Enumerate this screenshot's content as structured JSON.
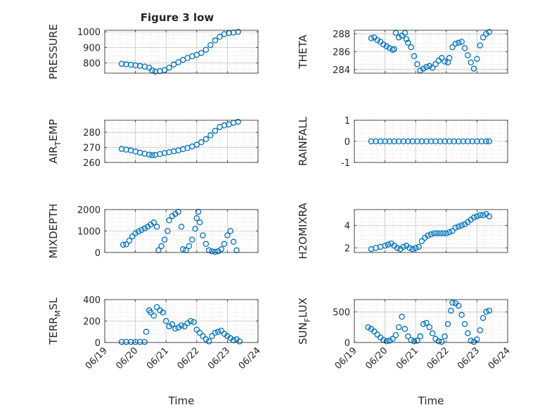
{
  "figure": {
    "title": "Figure 3 low",
    "marker_color": "#0072BD",
    "x_tick_labels": [
      "06/19",
      "06/20",
      "06/21",
      "06/22",
      "06/23",
      "06/24"
    ]
  },
  "chart_data": [
    {
      "type": "scatter",
      "title": "Figure 3 low",
      "ylabel": "PRESSURE",
      "xlabel": "",
      "ylim": [
        735,
        1010
      ],
      "yticks": [
        800,
        900,
        1000
      ],
      "xlim": [
        "06/19",
        "06/24"
      ],
      "grid": true,
      "x": [
        19.55,
        19.7,
        19.85,
        20.0,
        20.15,
        20.3,
        20.45,
        20.55,
        20.65,
        20.8,
        20.95,
        21.1,
        21.25,
        21.4,
        21.55,
        21.7,
        21.85,
        22.0,
        22.15,
        22.3,
        22.45,
        22.6,
        22.75,
        22.9,
        23.05,
        23.2,
        23.35
      ],
      "y": [
        795,
        792,
        789,
        785,
        781,
        777,
        770,
        752,
        745,
        748,
        755,
        770,
        790,
        805,
        820,
        832,
        843,
        852,
        865,
        885,
        915,
        945,
        968,
        985,
        992,
        995,
        1000
      ]
    },
    {
      "type": "scatter",
      "ylabel": "THETA",
      "xlabel": "",
      "ylim": [
        283.6,
        288.4
      ],
      "yticks": [
        284,
        286,
        288
      ],
      "xlim": [
        "06/19",
        "06/24"
      ],
      "grid": true,
      "x": [
        19.55,
        19.65,
        19.75,
        19.85,
        19.95,
        20.05,
        20.15,
        20.25,
        20.3,
        20.35,
        20.45,
        20.55,
        20.65,
        20.7,
        20.75,
        20.85,
        20.95,
        21.05,
        21.15,
        21.25,
        21.35,
        21.45,
        21.55,
        21.65,
        21.75,
        21.85,
        21.95,
        22.05,
        22.1,
        22.2,
        22.3,
        22.4,
        22.5,
        22.6,
        22.7,
        22.8,
        22.9,
        23.0,
        23.1,
        23.2,
        23.3,
        23.4
      ],
      "y": [
        287.5,
        287.6,
        287.3,
        287.1,
        286.8,
        286.6,
        286.4,
        286.2,
        286.3,
        288.1,
        287.6,
        287.8,
        288.1,
        287.4,
        287.0,
        286.5,
        285.5,
        284.6,
        283.9,
        284.1,
        284.3,
        284.4,
        284.2,
        284.6,
        285.0,
        285.3,
        284.9,
        284.8,
        285.3,
        286.5,
        286.9,
        287.0,
        287.1,
        286.4,
        285.6,
        284.8,
        284.1,
        285.2,
        286.7,
        287.6,
        288.0,
        288.2
      ]
    },
    {
      "type": "scatter",
      "ylabel": "AIR_TEMP",
      "xlabel": "",
      "ylim": [
        260,
        288
      ],
      "yticks": [
        260,
        270,
        280
      ],
      "xlim": [
        "06/19",
        "06/24"
      ],
      "grid": true,
      "x": [
        19.55,
        19.7,
        19.85,
        20.0,
        20.15,
        20.3,
        20.45,
        20.55,
        20.65,
        20.8,
        20.95,
        21.1,
        21.25,
        21.4,
        21.55,
        21.7,
        21.85,
        22.0,
        22.15,
        22.3,
        22.45,
        22.6,
        22.75,
        22.9,
        23.05,
        23.2,
        23.35
      ],
      "y": [
        269,
        268.5,
        268,
        267.3,
        266.5,
        265.8,
        265.2,
        264.8,
        265,
        265.6,
        266.2,
        266.8,
        267.4,
        268,
        268.8,
        269.6,
        270.6,
        271.8,
        273.4,
        275.5,
        278,
        281,
        283.5,
        284.6,
        285.2,
        286.3,
        287
      ]
    },
    {
      "type": "scatter",
      "ylabel": "RAINFALL",
      "xlabel": "",
      "ylim": [
        -1,
        1
      ],
      "yticks": [
        -1,
        0,
        1
      ],
      "xlim": [
        "06/19",
        "06/24"
      ],
      "grid": true,
      "x": [
        19.55,
        19.7,
        19.85,
        20.0,
        20.15,
        20.3,
        20.45,
        20.6,
        20.75,
        20.9,
        21.05,
        21.2,
        21.35,
        21.5,
        21.65,
        21.8,
        21.95,
        22.1,
        22.25,
        22.4,
        22.55,
        22.7,
        22.85,
        23.0,
        23.15,
        23.3,
        23.4
      ],
      "y": [
        0,
        0,
        0,
        0,
        0,
        0,
        0,
        0,
        0,
        0,
        0,
        0,
        0,
        0,
        0,
        0,
        0,
        0,
        0,
        0,
        0,
        0,
        0,
        0,
        0,
        0,
        0
      ]
    },
    {
      "type": "scatter",
      "ylabel": "MIXDEPTH",
      "xlabel": "",
      "ylim": [
        0,
        2000
      ],
      "yticks": [
        0,
        1000,
        2000
      ],
      "xlim": [
        "06/19",
        "06/24"
      ],
      "grid": true,
      "x": [
        19.6,
        19.7,
        19.8,
        19.9,
        20.0,
        20.1,
        20.2,
        20.3,
        20.4,
        20.5,
        20.6,
        20.7,
        20.75,
        20.85,
        20.95,
        21.05,
        21.1,
        21.2,
        21.3,
        21.4,
        21.5,
        21.55,
        21.65,
        21.75,
        21.85,
        21.95,
        22.0,
        22.05,
        22.1,
        22.2,
        22.3,
        22.4,
        22.5,
        22.6,
        22.7,
        22.8,
        22.9,
        23.0,
        23.1,
        23.2,
        23.3
      ],
      "y": [
        360,
        380,
        550,
        750,
        900,
        980,
        1050,
        1120,
        1200,
        1300,
        1400,
        1200,
        100,
        300,
        600,
        1000,
        1500,
        1700,
        1800,
        1900,
        1200,
        150,
        100,
        300,
        600,
        1100,
        1600,
        1900,
        1400,
        800,
        400,
        100,
        50,
        30,
        60,
        150,
        400,
        800,
        1000,
        500,
        100
      ]
    },
    {
      "type": "scatter",
      "ylabel": "H2OMIXRA",
      "xlabel": "",
      "ylim": [
        1.6,
        5.4
      ],
      "yticks": [
        2,
        4
      ],
      "xlim": [
        "06/19",
        "06/24"
      ],
      "grid": true,
      "x": [
        19.55,
        19.7,
        19.85,
        20.0,
        20.1,
        20.2,
        20.3,
        20.4,
        20.5,
        20.6,
        20.7,
        20.8,
        20.9,
        21.0,
        21.1,
        21.2,
        21.3,
        21.4,
        21.5,
        21.6,
        21.7,
        21.8,
        21.9,
        22.0,
        22.1,
        22.2,
        22.3,
        22.4,
        22.5,
        22.6,
        22.7,
        22.8,
        22.9,
        23.0,
        23.1,
        23.2,
        23.3,
        23.4
      ],
      "y": [
        1.9,
        2.0,
        2.1,
        2.2,
        2.3,
        2.4,
        2.2,
        2.0,
        1.9,
        2.1,
        2.2,
        2.0,
        1.9,
        2.0,
        2.1,
        2.6,
        2.9,
        3.1,
        3.2,
        3.3,
        3.3,
        3.3,
        3.3,
        3.3,
        3.4,
        3.5,
        3.8,
        3.9,
        4.0,
        4.1,
        4.3,
        4.5,
        4.7,
        4.8,
        4.9,
        4.9,
        5.0,
        4.8
      ]
    },
    {
      "type": "scatter",
      "ylabel": "TERR_MSL",
      "xlabel": "Time",
      "ylim": [
        0,
        400
      ],
      "yticks": [
        0,
        200,
        400
      ],
      "xlim": [
        "06/19",
        "06/24"
      ],
      "grid": true,
      "x": [
        19.55,
        19.7,
        19.85,
        20.0,
        20.15,
        20.3,
        20.35,
        20.45,
        20.5,
        20.6,
        20.7,
        20.8,
        20.9,
        21.0,
        21.1,
        21.2,
        21.3,
        21.4,
        21.5,
        21.6,
        21.7,
        21.8,
        21.9,
        22.0,
        22.1,
        22.2,
        22.3,
        22.4,
        22.5,
        22.6,
        22.7,
        22.8,
        22.9,
        23.0,
        23.1,
        23.2,
        23.3,
        23.4
      ],
      "y": [
        5,
        5,
        5,
        5,
        5,
        5,
        100,
        300,
        280,
        250,
        330,
        300,
        280,
        200,
        150,
        170,
        130,
        140,
        160,
        150,
        180,
        200,
        190,
        120,
        90,
        60,
        30,
        10,
        60,
        90,
        100,
        110,
        80,
        60,
        40,
        20,
        30,
        10
      ]
    },
    {
      "type": "scatter",
      "ylabel": "SUN_FLUX",
      "xlabel": "Time",
      "ylim": [
        0,
        700
      ],
      "yticks": [
        0,
        500
      ],
      "xlim": [
        "06/19",
        "06/24"
      ],
      "grid": true,
      "x": [
        19.45,
        19.55,
        19.65,
        19.75,
        19.85,
        19.95,
        20.05,
        20.15,
        20.25,
        20.35,
        20.45,
        20.55,
        20.65,
        20.75,
        20.85,
        20.95,
        21.05,
        21.15,
        21.25,
        21.35,
        21.45,
        21.55,
        21.65,
        21.75,
        21.85,
        21.95,
        22.05,
        22.15,
        22.2,
        22.3,
        22.4,
        22.5,
        22.6,
        22.7,
        22.8,
        22.9,
        23.0,
        23.1,
        23.2,
        23.3,
        23.4
      ],
      "y": [
        250,
        220,
        180,
        130,
        80,
        40,
        20,
        30,
        60,
        120,
        250,
        420,
        220,
        100,
        40,
        20,
        30,
        100,
        300,
        320,
        250,
        150,
        60,
        20,
        10,
        100,
        300,
        520,
        650,
        640,
        600,
        450,
        300,
        150,
        30,
        10,
        50,
        200,
        400,
        500,
        520
      ]
    }
  ]
}
